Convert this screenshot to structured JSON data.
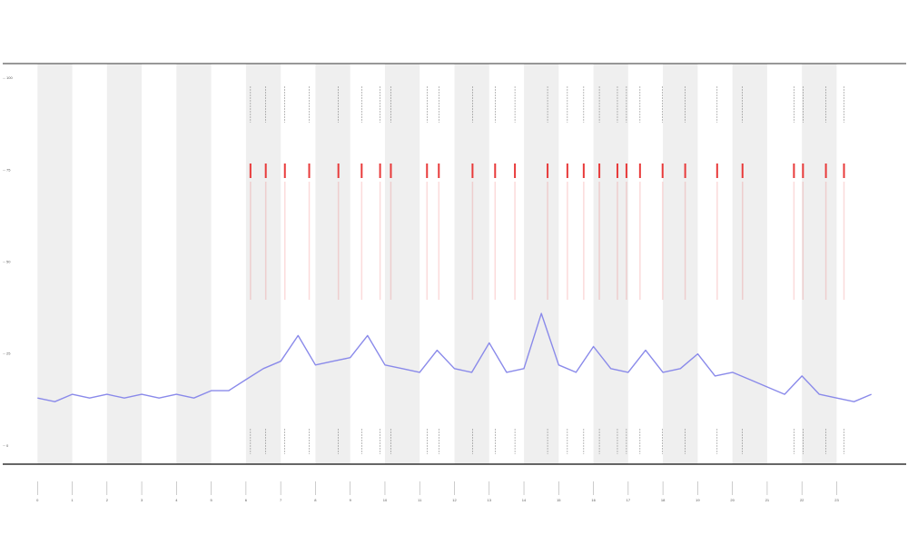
{
  "chart_data": {
    "type": "line",
    "x": [
      0,
      0.5,
      1,
      1.5,
      2,
      2.5,
      3,
      3.5,
      4,
      4.5,
      5,
      5.5,
      6,
      6.5,
      7,
      7.5,
      8,
      8.5,
      9,
      9.5,
      10,
      10.5,
      11,
      11.5,
      12,
      12.5,
      13,
      13.5,
      14,
      14.5,
      15,
      15.5,
      16,
      16.5,
      17,
      17.5,
      18,
      18.5,
      19,
      19.5,
      20,
      20.5,
      21,
      21.5,
      22,
      22.5,
      23,
      23.5,
      24
    ],
    "series": [
      {
        "color": "#8a8aea",
        "values": [
          13,
          12,
          14,
          13,
          14,
          13,
          14,
          13,
          14,
          13,
          15,
          15,
          18,
          21,
          23,
          30,
          22,
          23,
          24,
          30,
          22,
          21,
          20,
          26,
          21,
          20,
          28,
          20,
          21,
          36,
          22,
          20,
          27,
          21,
          20,
          26,
          20,
          21,
          25,
          19,
          20,
          18,
          16,
          14,
          19,
          14,
          13,
          12,
          14
        ]
      }
    ],
    "events": [
      6.13,
      6.57,
      7.12,
      7.82,
      8.66,
      9.33,
      9.86,
      10.17,
      11.21,
      11.55,
      12.52,
      13.17,
      13.74,
      14.68,
      15.25,
      15.72,
      16.17,
      16.69,
      16.95,
      17.34,
      17.99,
      18.64,
      19.56,
      20.29,
      21.77,
      22.03,
      22.69,
      23.21
    ],
    "event_color": "#e83a3a",
    "xlim": [
      -1,
      25
    ],
    "xticks": [
      0,
      1,
      2,
      3,
      4,
      5,
      6,
      7,
      8,
      9,
      10,
      11,
      12,
      13,
      14,
      15,
      16,
      17,
      18,
      19,
      20,
      21,
      22,
      23
    ],
    "ylim": [
      -5,
      104
    ],
    "yticks": [
      0,
      25,
      50,
      75,
      100
    ],
    "shade_alternate": true
  }
}
